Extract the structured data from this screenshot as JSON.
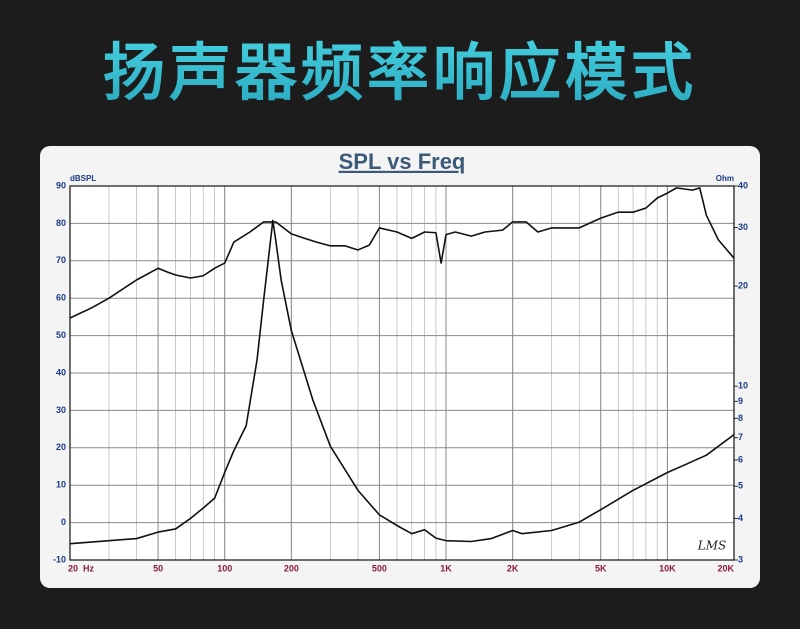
{
  "headline": "扬声器频率响应模式",
  "chart_data": {
    "type": "line",
    "title": "SPL vs Freq",
    "y_label": "dBSPL",
    "y2_label": "Ohm",
    "watermark": "LMS",
    "xscale": "log",
    "y2scale": "log",
    "grid": true,
    "xlim": [
      20,
      20000
    ],
    "xticks": [
      {
        "value": 20,
        "label": "20  Hz"
      },
      50,
      100,
      200,
      500,
      {
        "value": 1000,
        "label": "1K"
      },
      {
        "value": 2000,
        "label": "2K"
      },
      {
        "value": 5000,
        "label": "5K"
      },
      {
        "value": 10000,
        "label": "10K"
      },
      {
        "value": 20000,
        "label": "20K"
      }
    ],
    "ylim": [
      -10,
      90
    ],
    "yticks": [
      -10,
      0,
      10,
      20,
      30,
      40,
      50,
      60,
      70,
      80,
      90
    ],
    "y2lim": [
      3,
      40
    ],
    "y2ticks": [
      3,
      4,
      5,
      6,
      7,
      8,
      9,
      10,
      20,
      30,
      40
    ],
    "series": [
      {
        "color": "#111111",
        "x": [
          20,
          25,
          30,
          40,
          50,
          55,
          60,
          70,
          80,
          90,
          100,
          110,
          130,
          150,
          170,
          200,
          230,
          260,
          300,
          350,
          400,
          450,
          500,
          600,
          700,
          800,
          900,
          950,
          1000,
          1100,
          1300,
          1500,
          1800,
          2000,
          2300,
          2600,
          3000,
          4000,
          5000,
          6000,
          7000,
          8000,
          9000,
          10000,
          11000,
          13000,
          14000,
          15000,
          17000,
          20000
        ],
        "values": [
          54.7,
          57.4,
          60,
          64.9,
          68,
          67,
          66.2,
          65.4,
          66,
          68,
          69.4,
          75,
          77.7,
          80.4,
          80.4,
          77.2,
          76,
          75,
          74,
          74,
          72.9,
          74.2,
          78.8,
          77.7,
          76,
          77.7,
          77.5,
          69.4,
          77,
          77.7,
          76.6,
          77.7,
          78.2,
          80.4,
          80.4,
          77.7,
          78.8,
          78.8,
          81.4,
          83,
          83,
          84.1,
          86.8,
          88.1,
          89.5,
          88.9,
          89.5,
          82.2,
          75.6,
          70.7
        ]
      },
      {
        "color": "#111111",
        "axis": "y2",
        "x": [
          20,
          30,
          40,
          50,
          60,
          70,
          80,
          90,
          100,
          110,
          125,
          140,
          150,
          165,
          170,
          180,
          200,
          250,
          300,
          400,
          500,
          600,
          700,
          800,
          900,
          1000,
          1300,
          1600,
          2000,
          2200,
          3000,
          4000,
          5000,
          7000,
          10000,
          12000,
          15000,
          20000
        ],
        "values": [
          3.36,
          3.43,
          3.48,
          3.64,
          3.72,
          4.0,
          4.3,
          4.6,
          5.5,
          6.4,
          7.6,
          12,
          18.2,
          31.5,
          27.5,
          20.8,
          14.7,
          9.1,
          6.6,
          4.86,
          4.1,
          3.81,
          3.6,
          3.7,
          3.49,
          3.43,
          3.41,
          3.48,
          3.68,
          3.6,
          3.68,
          3.9,
          4.25,
          4.86,
          5.5,
          5.8,
          6.2,
          7.15
        ]
      }
    ]
  }
}
